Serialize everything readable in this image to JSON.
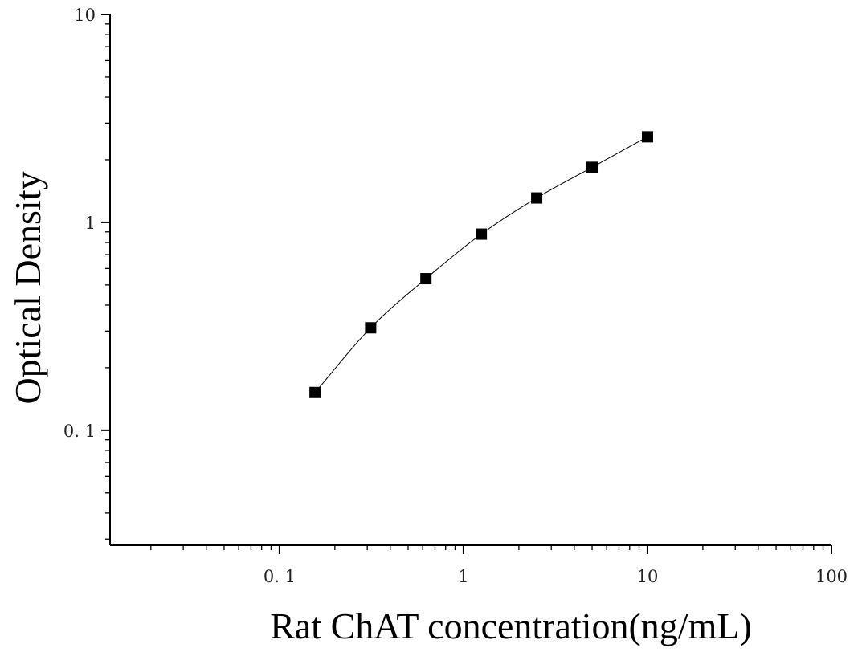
{
  "chart_data": {
    "type": "scatter",
    "title": "",
    "xlabel": "Rat ChAT concentration(ng/mL)",
    "ylabel": "Optical Density",
    "xscale": "log",
    "yscale": "log",
    "xlim": [
      0.012,
      100
    ],
    "ylim": [
      0.028,
      10
    ],
    "x_ticks": [
      {
        "value": 0.1,
        "label": "0. 1"
      },
      {
        "value": 1,
        "label": "1"
      },
      {
        "value": 10,
        "label": "10"
      },
      {
        "value": 100,
        "label": "100"
      }
    ],
    "y_ticks": [
      {
        "value": 0.1,
        "label": "0. 1"
      },
      {
        "value": 1,
        "label": "1"
      },
      {
        "value": 10,
        "label": "10"
      }
    ],
    "grid": false,
    "legend": "none",
    "series": [
      {
        "x": [
          0.156,
          0.313,
          0.625,
          1.25,
          2.5,
          5,
          10
        ],
        "y": [
          0.152,
          0.311,
          0.536,
          0.878,
          1.31,
          1.84,
          2.58
        ],
        "marker": "square",
        "fit_line": true,
        "color": "#000000"
      }
    ]
  }
}
